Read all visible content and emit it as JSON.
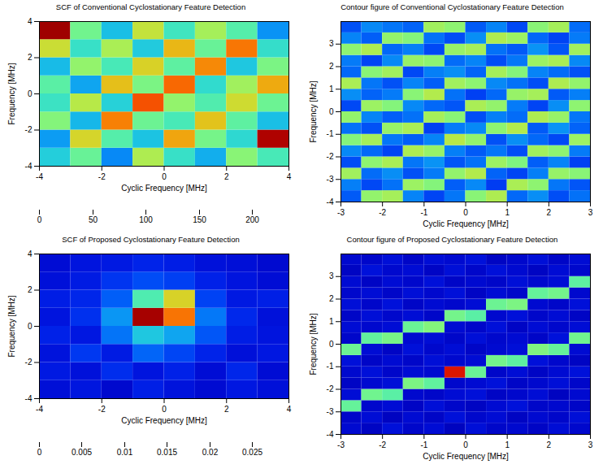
{
  "chart_data": [
    {
      "type": "heatmap",
      "title": "SCF of Conventional Cyclostationary Feature Detection",
      "x_label": "Cyclic Frequency [MHz]",
      "y_label": "Frequency [MHz]",
      "xlim": [
        -4,
        4
      ],
      "ylim": [
        -4,
        4
      ],
      "xticks": [
        -4,
        -2,
        0,
        2,
        4
      ],
      "yticks": [
        -4,
        -2,
        0,
        2,
        4
      ],
      "x": [
        -3.5,
        -2.5,
        -1.5,
        -0.5,
        0.5,
        1.5,
        2.5,
        3.5
      ],
      "y": [
        -3.5,
        -2.5,
        -1.5,
        -0.5,
        0.5,
        1.5,
        2.5,
        3.5
      ],
      "values": [
        [
          78,
          95,
          62,
          110,
          84,
          70,
          102,
          88
        ],
        [
          66,
          120,
          91,
          75,
          132,
          98,
          81,
          185
        ],
        [
          101,
          72,
          140,
          96,
          88,
          125,
          93,
          74
        ],
        [
          85,
          112,
          79,
          150,
          104,
          90,
          118,
          96
        ],
        [
          92,
          68,
          126,
          99,
          145,
          82,
          107,
          131
        ],
        [
          73,
          104,
          88,
          121,
          93,
          138,
          76,
          99
        ],
        [
          117,
          84,
          109,
          77,
          128,
          95,
          142,
          83
        ],
        [
          190,
          97,
          74,
          115,
          86,
          108,
          91,
          64
        ]
      ],
      "zlim": [
        0,
        200
      ],
      "zticks": [
        0,
        50,
        100,
        150,
        200
      ]
    },
    {
      "type": "heatmap",
      "title": "Contour figure of Conventional Cyclostationary Feature Detection",
      "x_label": "Cyclic Frequency [MHz]",
      "y_label": "Frequency [MHz]",
      "xlim": [
        -3,
        3
      ],
      "ylim": [
        -4,
        4
      ],
      "xticks": [
        -3,
        -2,
        -1,
        0,
        1,
        2,
        3
      ],
      "yticks": [
        -4,
        -3,
        -2,
        -1,
        0,
        1,
        2,
        3
      ],
      "x": [
        -2.75,
        -2.25,
        -1.75,
        -1.25,
        -0.75,
        -0.25,
        0.25,
        0.75,
        1.25,
        1.75,
        2.25,
        2.75
      ],
      "y": [
        -3.75,
        -3.25,
        -2.75,
        -2.25,
        -1.75,
        -1.25,
        -0.75,
        -0.25,
        0.25,
        0.75,
        1.25,
        1.75,
        2.25,
        2.75,
        3.25,
        3.75
      ],
      "values": [
        [
          52,
          104,
          108,
          61,
          47,
          58,
          102,
          110,
          55,
          63,
          49,
          57
        ],
        [
          60,
          48,
          57,
          106,
          101,
          53,
          62,
          45,
          109,
          103,
          58,
          51
        ],
        [
          107,
          56,
          63,
          50,
          59,
          104,
          111,
          54,
          47,
          60,
          105,
          102
        ],
        [
          49,
          103,
          109,
          58,
          64,
          51,
          57,
          106,
          100,
          53,
          61,
          46
        ],
        [
          62,
          55,
          47,
          110,
          105,
          60,
          52,
          58,
          49,
          107,
          103,
          59
        ],
        [
          101,
          108,
          58,
          53,
          61,
          112,
          104,
          50,
          63,
          55,
          48,
          106
        ],
        [
          57,
          50,
          105,
          109,
          46,
          59,
          62,
          103,
          111,
          52,
          64,
          54
        ],
        [
          104,
          61,
          53,
          57,
          108,
          102,
          49,
          60,
          56,
          110,
          105,
          58
        ],
        [
          48,
          106,
          101,
          62,
          55,
          51,
          109,
          104,
          59,
          47,
          63,
          103
        ],
        [
          63,
          54,
          59,
          102,
          111,
          57,
          46,
          55,
          105,
          108,
          52,
          60
        ],
        [
          109,
          58,
          50,
          61,
          53,
          107,
          103,
          62,
          57,
          49,
          110,
          104
        ],
        [
          55,
          102,
          107,
          48,
          60,
          63,
          54,
          108,
          101,
          61,
          56,
          50
        ],
        [
          59,
          47,
          62,
          105,
          103,
          56,
          61,
          49,
          58,
          106,
          109,
          62
        ],
        [
          103,
          110,
          55,
          60,
          48,
          105,
          108,
          57,
          52,
          64,
          51,
          107
        ],
        [
          61,
          53,
          104,
          101,
          57,
          49,
          63,
          110,
          106,
          55,
          47,
          59
        ],
        [
          50,
          62,
          58,
          54,
          107,
          103,
          52,
          61,
          48,
          102,
          108,
          56
        ]
      ],
      "zlim": [
        0,
        200
      ]
    },
    {
      "type": "heatmap",
      "title": "SCF of Proposed Cyclostationary Feature Detection",
      "x_label": "Cyclic Frequency [MHz]",
      "y_label": "Frequency [MHz]",
      "xlim": [
        -4,
        4
      ],
      "ylim": [
        -4,
        4
      ],
      "xticks": [
        -4,
        -2,
        0,
        2,
        4
      ],
      "yticks": [
        -4,
        -2,
        0,
        2,
        4
      ],
      "x": [
        -3.5,
        -2.5,
        -1.5,
        -0.5,
        0.5,
        1.5,
        2.5,
        3.5
      ],
      "y": [
        -3.5,
        -2.5,
        -1.5,
        -0.5,
        0.5,
        1.5,
        2.5,
        3.5
      ],
      "values": [
        [
          0.0035,
          0.004,
          0.003,
          0.0045,
          0.0038,
          0.0032,
          0.0041,
          0.0036
        ],
        [
          0.0042,
          0.0037,
          0.0051,
          0.0039,
          0.0046,
          0.0034,
          0.0048,
          0.0033
        ],
        [
          0.0038,
          0.0055,
          0.0043,
          0.0068,
          0.0059,
          0.0047,
          0.0036,
          0.0041
        ],
        [
          0.0046,
          0.0041,
          0.0072,
          0.0095,
          0.0085,
          0.0064,
          0.0044,
          0.0039
        ],
        [
          0.0039,
          0.0052,
          0.0081,
          0.0235,
          0.0178,
          0.0073,
          0.0049,
          0.0037
        ],
        [
          0.0044,
          0.0048,
          0.0066,
          0.0112,
          0.0151,
          0.0058,
          0.0042,
          0.0045
        ],
        [
          0.0036,
          0.0043,
          0.0054,
          0.0061,
          0.0057,
          0.0046,
          0.0039,
          0.0034
        ],
        [
          0.0033,
          0.0039,
          0.0042,
          0.0047,
          0.0044,
          0.0037,
          0.0035,
          0.0031
        ]
      ],
      "zlim": [
        0,
        0.025
      ],
      "zticks": [
        0,
        0.005,
        0.01,
        0.015,
        0.02,
        0.025
      ]
    },
    {
      "type": "heatmap",
      "title": "Contour figure of Proposed Cyclostationary Feature Detection",
      "x_label": "Cyclic Frequency [MHz]",
      "y_label": "Frequency [MHz]",
      "xlim": [
        -3,
        3
      ],
      "ylim": [
        -4,
        4
      ],
      "xticks": [
        -3,
        -2,
        -1,
        0,
        1,
        2,
        3
      ],
      "yticks": [
        -4,
        -3,
        -2,
        -1,
        0,
        1,
        2,
        3
      ],
      "x": [
        -2.75,
        -2.25,
        -1.75,
        -1.25,
        -0.75,
        -0.25,
        0.25,
        0.75,
        1.25,
        1.75,
        2.25,
        2.75
      ],
      "y": [
        -3.75,
        -3.25,
        -2.75,
        -2.25,
        -1.75,
        -1.25,
        -0.75,
        -0.25,
        0.25,
        0.75,
        1.25,
        1.75,
        2.25,
        2.75,
        3.25,
        3.75
      ],
      "values": [
        [
          0.0031,
          0.0024,
          0.0036,
          0.0028,
          0.0033,
          0.0022,
          0.0035,
          0.0027,
          0.003,
          0.0025,
          0.0034,
          0.0029
        ],
        [
          0.0027,
          0.0034,
          0.0023,
          0.0032,
          0.0026,
          0.0036,
          0.0029,
          0.0033,
          0.0024,
          0.0031,
          0.0028,
          0.0035
        ],
        [
          0.0118,
          0.0029,
          0.0033,
          0.0025,
          0.0035,
          0.0028,
          0.0024,
          0.0032,
          0.0037,
          0.0027,
          0.003,
          0.0026
        ],
        [
          0.0034,
          0.0121,
          0.0115,
          0.003,
          0.0027,
          0.0033,
          0.0036,
          0.0025,
          0.0029,
          0.0034,
          0.0023,
          0.0031
        ],
        [
          0.0025,
          0.0031,
          0.0035,
          0.0124,
          0.0117,
          0.0029,
          0.0032,
          0.0037,
          0.0026,
          0.003,
          0.0035,
          0.0028
        ],
        [
          0.003,
          0.0036,
          0.0028,
          0.0033,
          0.0031,
          0.021,
          0.0119,
          0.0027,
          0.0034,
          0.0025,
          0.0032,
          0.0037
        ],
        [
          0.0036,
          0.0026,
          0.0032,
          0.0027,
          0.0035,
          0.003,
          0.0033,
          0.0122,
          0.0116,
          0.0036,
          0.0029,
          0.0024
        ],
        [
          0.012,
          0.0033,
          0.0025,
          0.0036,
          0.0029,
          0.0034,
          0.0026,
          0.0031,
          0.0035,
          0.0125,
          0.0118,
          0.0032
        ],
        [
          0.0028,
          0.0117,
          0.0123,
          0.0031,
          0.0034,
          0.0027,
          0.0035,
          0.0029,
          0.0032,
          0.0026,
          0.0037,
          0.0121
        ],
        [
          0.0033,
          0.003,
          0.0034,
          0.0119,
          0.0126,
          0.0032,
          0.0028,
          0.0036,
          0.0025,
          0.0033,
          0.0029,
          0.0034
        ],
        [
          0.0026,
          0.0035,
          0.0029,
          0.0034,
          0.0027,
          0.0122,
          0.0115,
          0.003,
          0.0036,
          0.0028,
          0.0033,
          0.0025
        ],
        [
          0.0035,
          0.0028,
          0.0037,
          0.0026,
          0.0032,
          0.0029,
          0.0034,
          0.012,
          0.0124,
          0.0031,
          0.0027,
          0.0036
        ],
        [
          0.0029,
          0.0034,
          0.0027,
          0.0035,
          0.003,
          0.0036,
          0.0025,
          0.0033,
          0.0028,
          0.0118,
          0.0122,
          0.003
        ],
        [
          0.0032,
          0.0025,
          0.0033,
          0.0029,
          0.0036,
          0.0026,
          0.0031,
          0.0027,
          0.0035,
          0.003,
          0.0034,
          0.0116
        ],
        [
          0.0024,
          0.0037,
          0.003,
          0.0033,
          0.0025,
          0.0035,
          0.0028,
          0.0036,
          0.0031,
          0.0024,
          0.0033,
          0.0029
        ],
        [
          0.003,
          0.0028,
          0.0035,
          0.0026,
          0.0034,
          0.0031,
          0.0037,
          0.0024,
          0.0029,
          0.0035,
          0.0026,
          0.0033
        ]
      ],
      "zlim": [
        0,
        0.025
      ]
    }
  ]
}
